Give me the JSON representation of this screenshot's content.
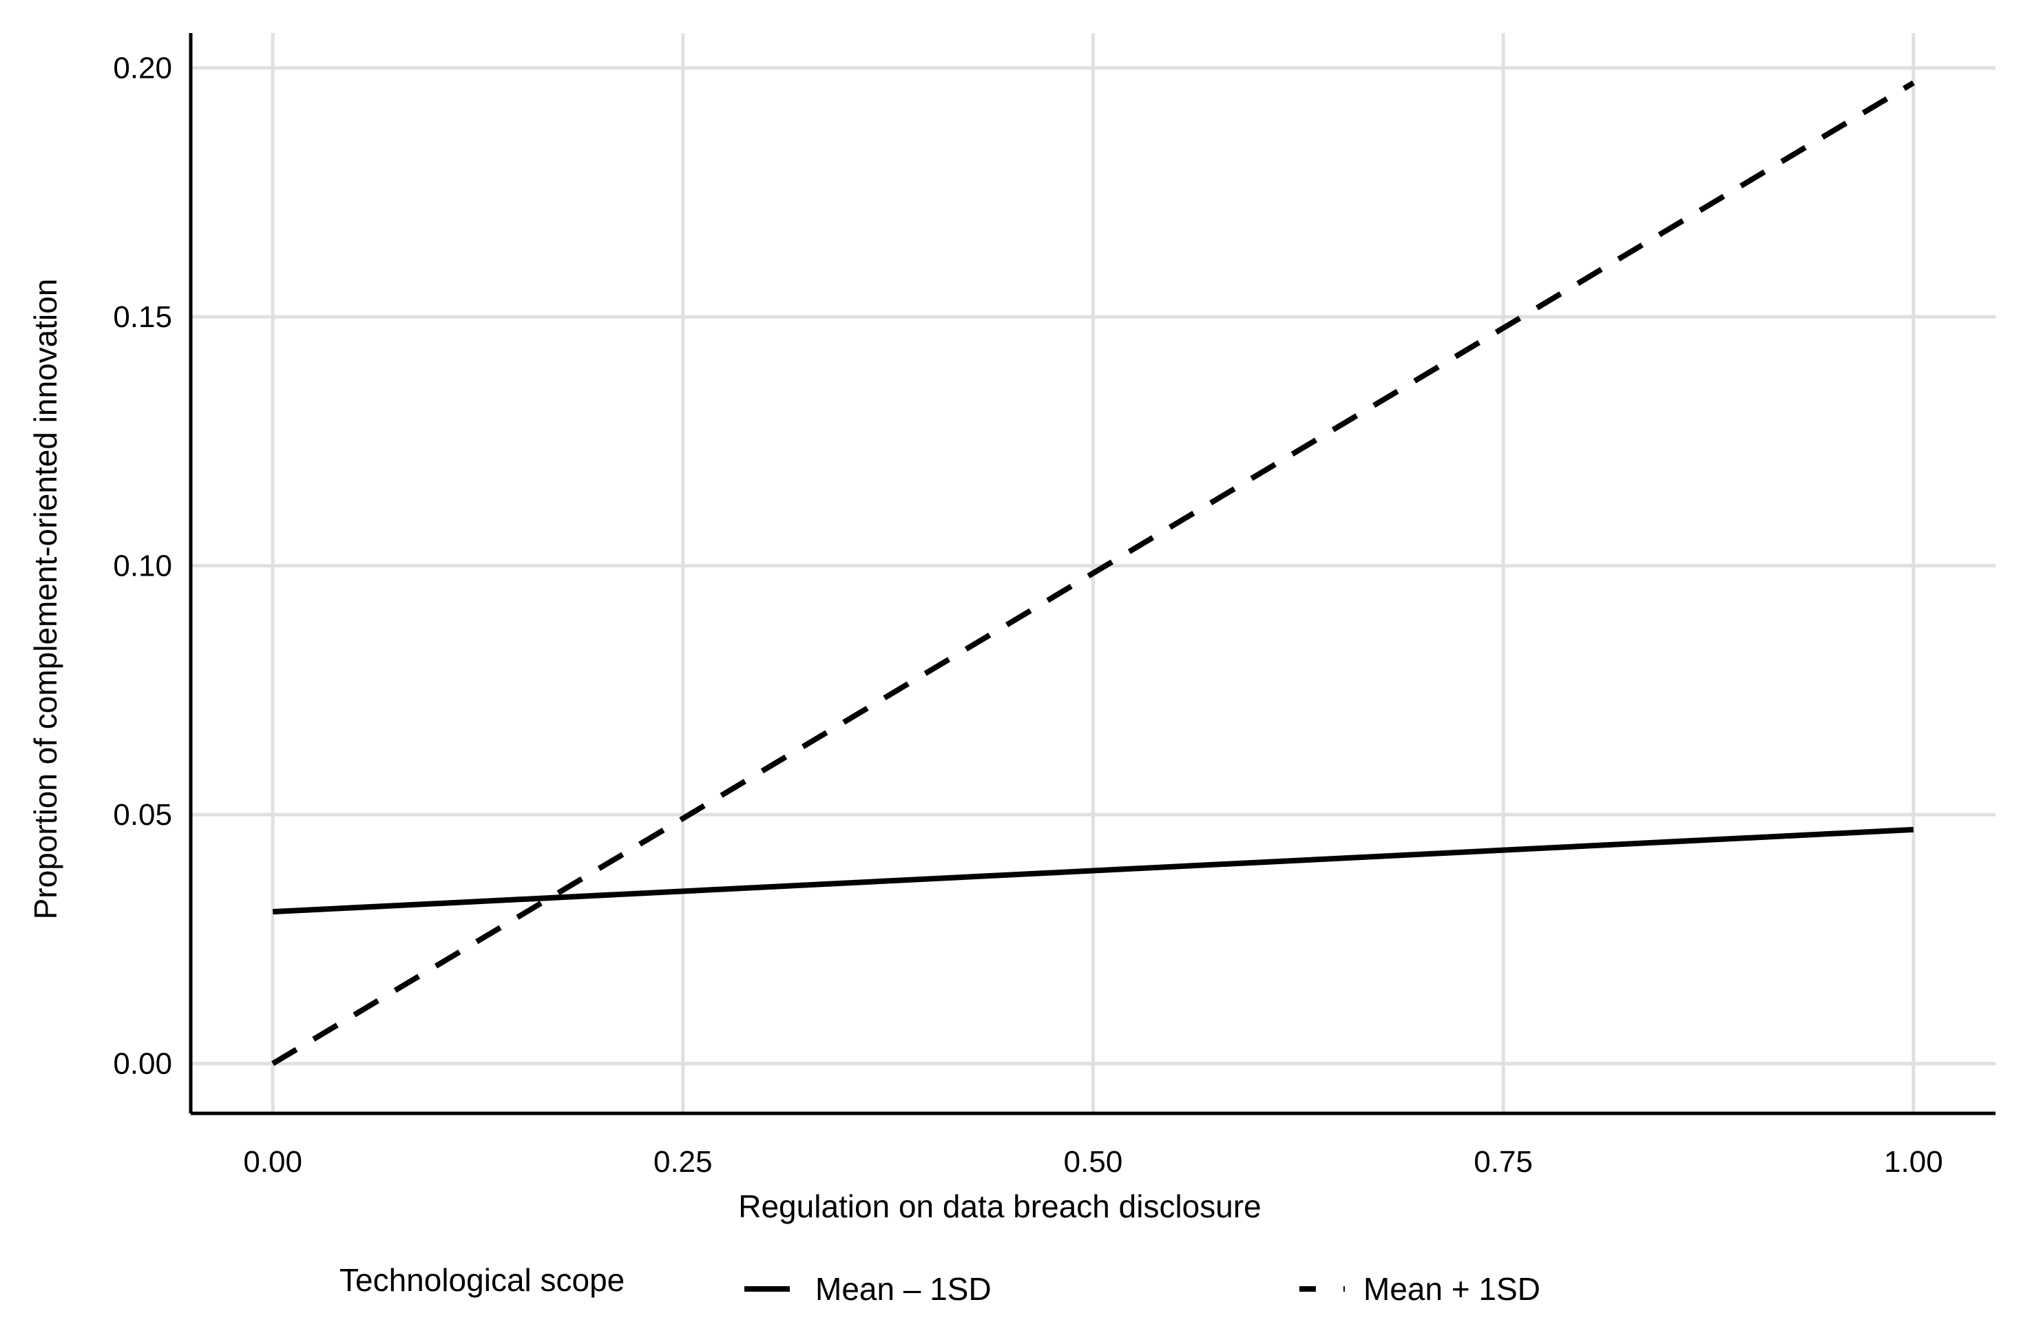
{
  "chart_data": {
    "type": "line",
    "xlabel": "Regulation on data breach disclosure",
    "ylabel": "Proportion of complement-oriented innovation",
    "xlim": [
      -0.05,
      1.05
    ],
    "ylim": [
      -0.01,
      0.207
    ],
    "x_ticks": [
      0,
      0.25,
      0.5,
      0.75,
      1
    ],
    "x_tick_labels": [
      "0.00",
      "0.25",
      "0.50",
      "0.75",
      "1.00"
    ],
    "y_ticks": [
      0,
      0.05,
      0.1,
      0.15,
      0.2
    ],
    "y_tick_labels": [
      "0.00",
      "0.05",
      "0.10",
      "0.15",
      "0.20"
    ],
    "grid": true,
    "legend_title": "Technological scope",
    "legend_position": "bottom",
    "series": [
      {
        "name": "Mean – 1SD",
        "line_style": "solid",
        "color": "#000000",
        "x": [
          0,
          1
        ],
        "y": [
          0.0305,
          0.047
        ]
      },
      {
        "name": "Mean + 1SD",
        "line_style": "dashed",
        "color": "#000000",
        "x": [
          0,
          1
        ],
        "y": [
          0.0,
          0.197
        ]
      }
    ]
  }
}
